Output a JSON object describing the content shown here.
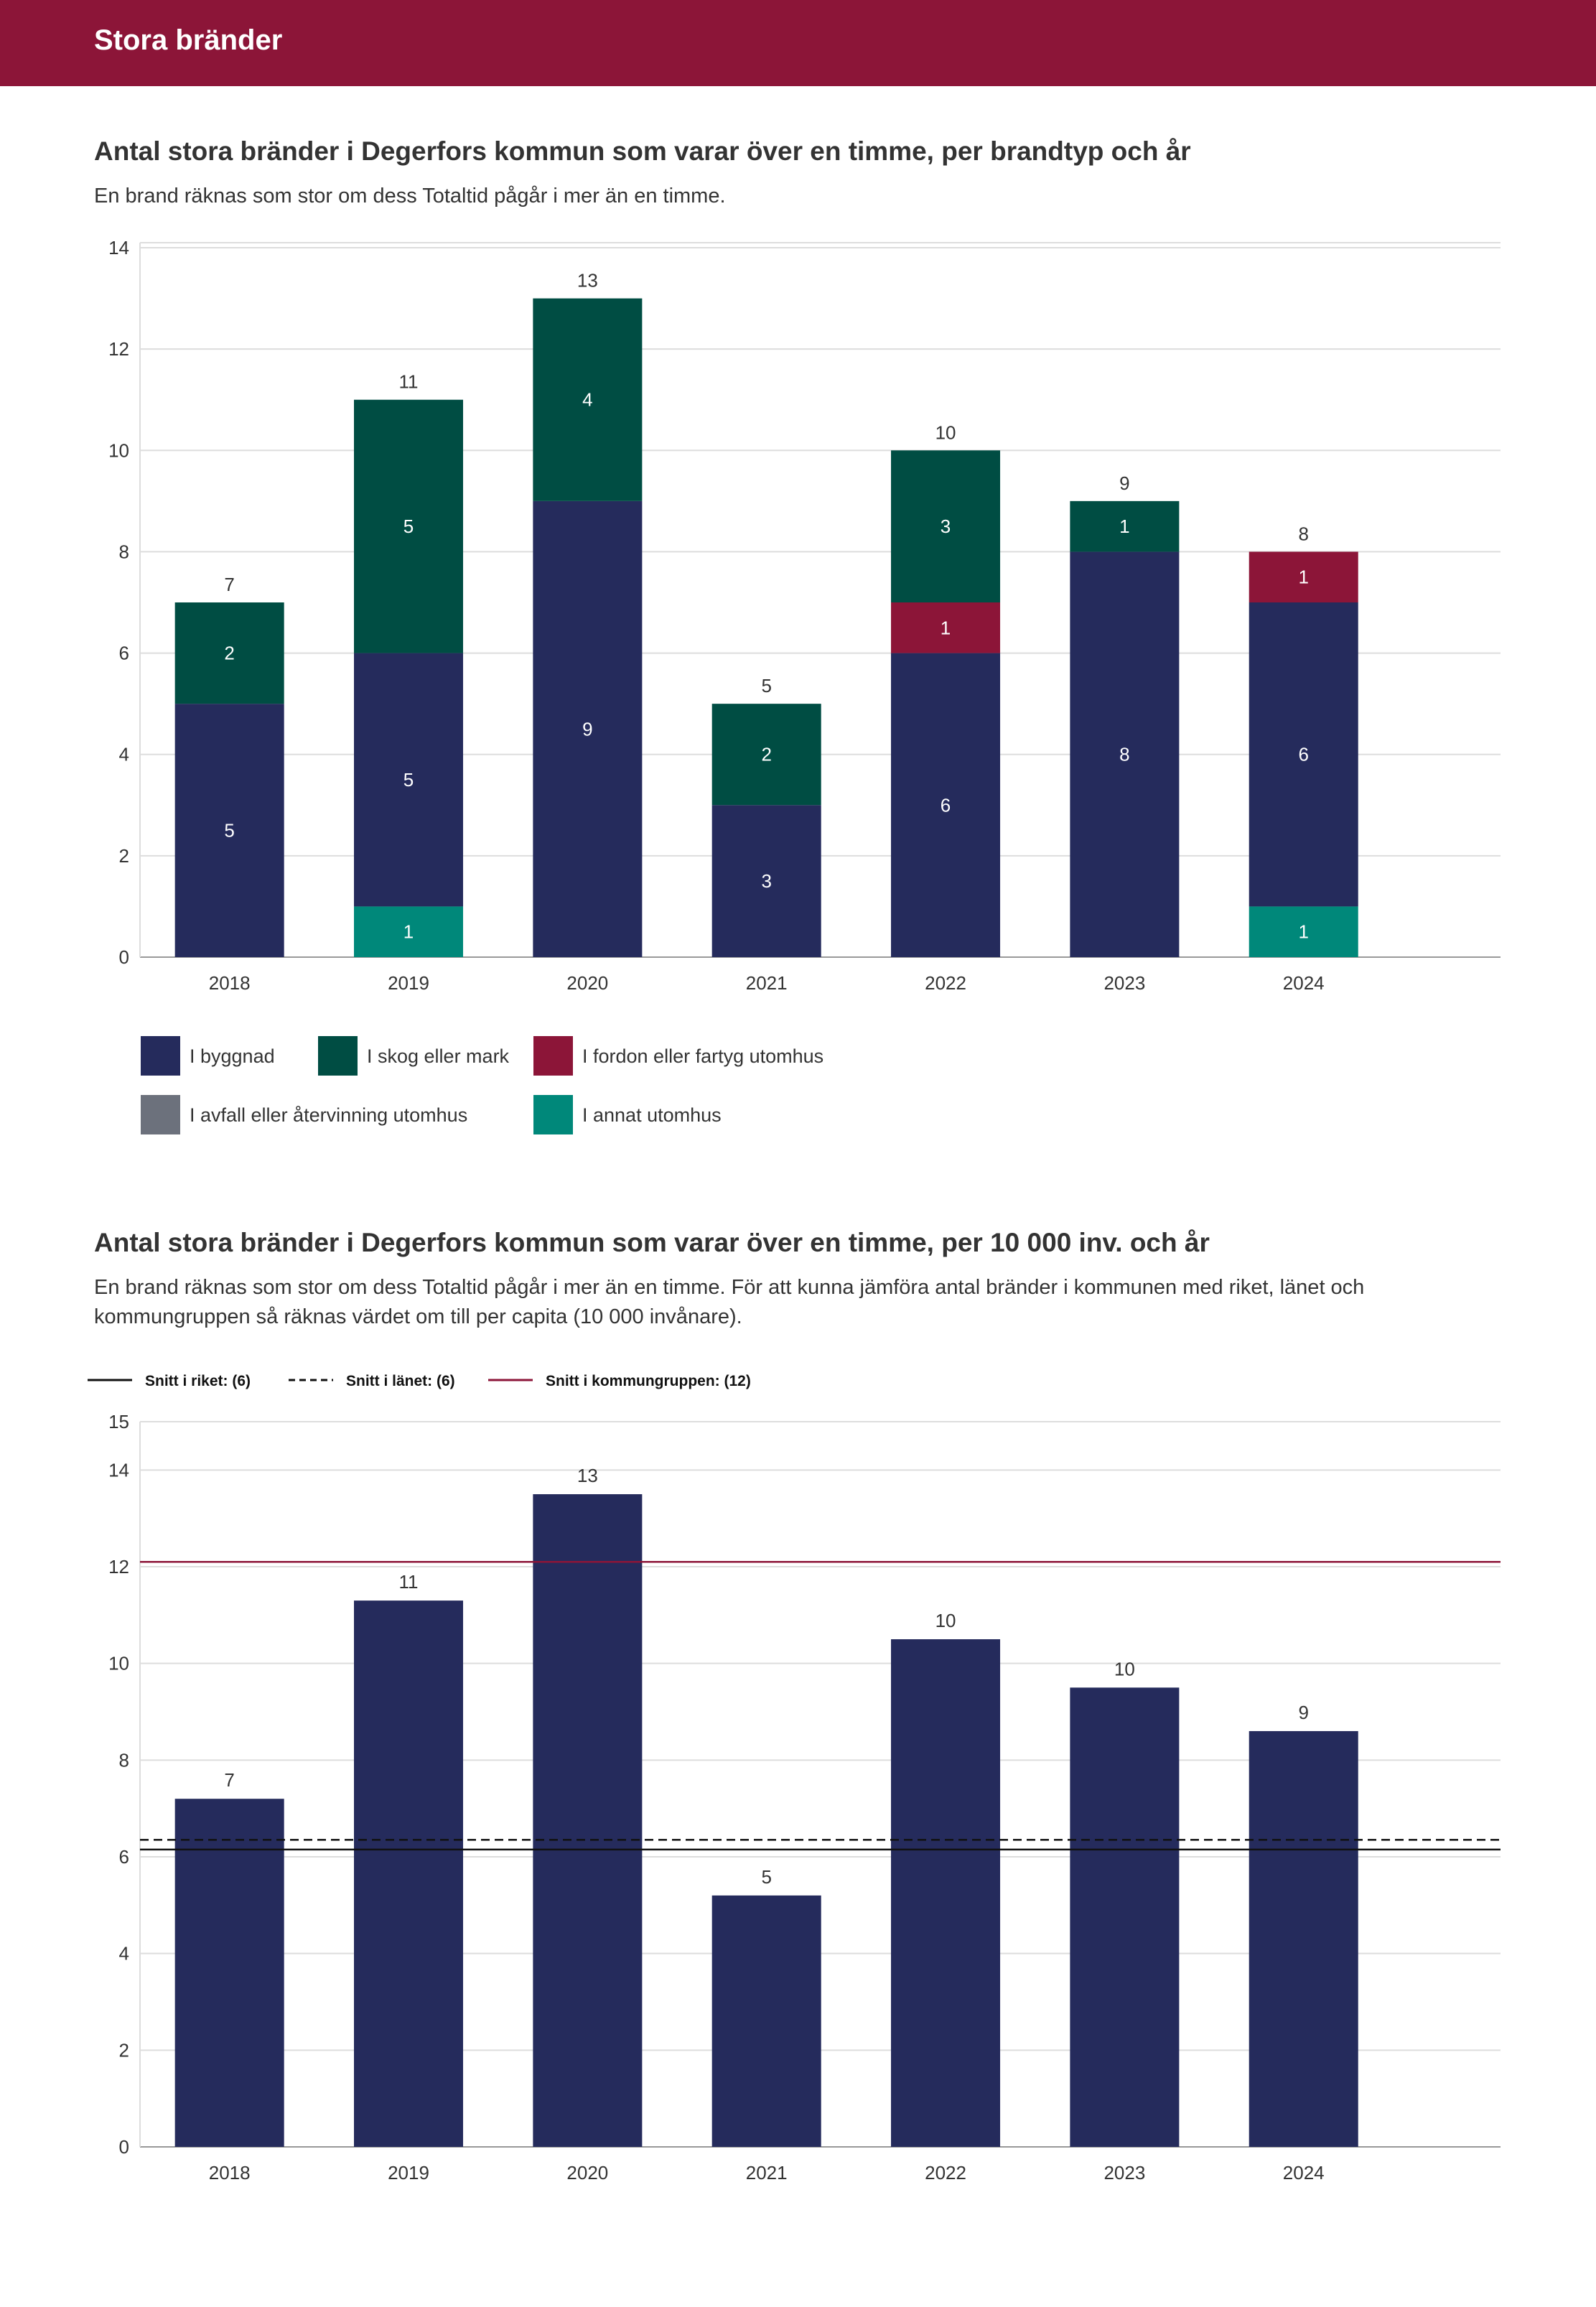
{
  "header": {
    "title": "Stora bränder",
    "color": "#8c1538"
  },
  "chart1": {
    "title": "Antal stora bränder i Degerfors kommun som varar över en timme, per brandtyp och år",
    "subtitle": "En brand räknas som stor om dess Totaltid pågår i mer än en timme."
  },
  "chart2": {
    "title": "Antal stora bränder i Degerfors kommun som varar över en timme, per 10 000 inv. och år",
    "subtitle": "En brand räknas som stor om dess Totaltid pågår i mer än en timme. För att kunna jämföra antal bränder i kommunen med riket, länet och kommungruppen så räknas värdet om till per capita (10 000 invånare)."
  },
  "chart_data": [
    {
      "type": "bar",
      "stacked": true,
      "title": "Antal stora bränder i Degerfors kommun som varar över en timme, per brandtyp och år",
      "categories": [
        "2018",
        "2019",
        "2020",
        "2021",
        "2022",
        "2023",
        "2024"
      ],
      "series": [
        {
          "name": "I annat utomhus",
          "color": "#00887a",
          "values": [
            0,
            1,
            0,
            0,
            0,
            0,
            1
          ]
        },
        {
          "name": "I byggnad",
          "color": "#252b5c",
          "values": [
            5,
            5,
            9,
            3,
            6,
            8,
            6
          ]
        },
        {
          "name": "I fordon eller fartyg utomhus",
          "color": "#8c1538",
          "values": [
            0,
            0,
            0,
            0,
            1,
            0,
            1
          ]
        },
        {
          "name": "I skog eller mark",
          "color": "#004d43",
          "values": [
            2,
            5,
            4,
            2,
            3,
            1,
            0
          ]
        },
        {
          "name": "I avfall eller återvinning utomhus",
          "color": "#6c717c",
          "values": [
            0,
            0,
            0,
            0,
            0,
            0,
            0
          ]
        }
      ],
      "totals": [
        7,
        11,
        13,
        5,
        10,
        9,
        8
      ],
      "yticks": [
        0,
        2,
        4,
        6,
        8,
        10,
        12,
        14
      ],
      "ylim": [
        0,
        14
      ],
      "legend": [
        {
          "label": "I byggnad",
          "color": "#252b5c"
        },
        {
          "label": "I skog eller mark",
          "color": "#004d43"
        },
        {
          "label": "I fordon eller fartyg utomhus",
          "color": "#8c1538"
        },
        {
          "label": "I avfall eller återvinning utomhus",
          "color": "#6c717c"
        },
        {
          "label": "I annat utomhus",
          "color": "#00887a"
        }
      ],
      "legend_position": "bottom"
    },
    {
      "type": "bar",
      "title": "Antal stora bränder i Degerfors kommun som varar över en timme, per 10 000 inv. och år",
      "categories": [
        "2018",
        "2019",
        "2020",
        "2021",
        "2022",
        "2023",
        "2024"
      ],
      "values": [
        7.2,
        11.3,
        13.5,
        5.2,
        10.5,
        9.5,
        8.6
      ],
      "value_labels": [
        "7",
        "11",
        "13",
        "5",
        "10",
        "10",
        "9"
      ],
      "color": "#252b5c",
      "yticks": [
        0,
        2,
        4,
        6,
        8,
        10,
        12,
        14,
        15
      ],
      "ylim": [
        0,
        15
      ],
      "reference_lines": [
        {
          "label": "Snitt i riket: (6)",
          "value": 6.15,
          "style": "solid",
          "color": "#111111"
        },
        {
          "label": "Snitt i länet: (6)",
          "value": 6.35,
          "style": "dashed",
          "color": "#111111"
        },
        {
          "label": "Snitt i kommungruppen: (12)",
          "value": 12.1,
          "style": "solid",
          "color": "#8c1538"
        }
      ],
      "legend_position": "top"
    }
  ]
}
